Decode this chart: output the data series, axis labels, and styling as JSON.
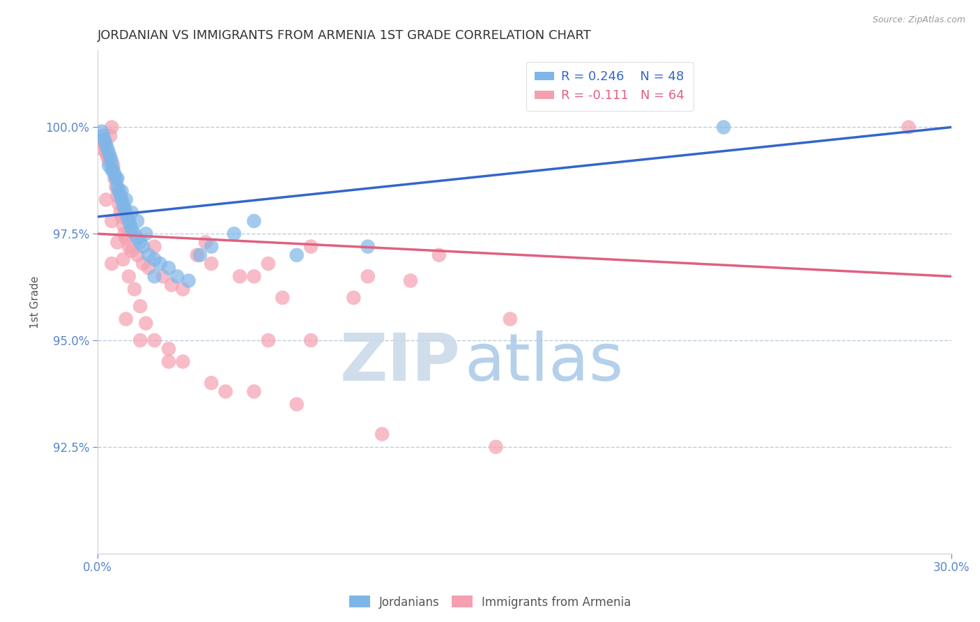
{
  "title": "JORDANIAN VS IMMIGRANTS FROM ARMENIA 1ST GRADE CORRELATION CHART",
  "source": "Source: ZipAtlas.com",
  "ylabel": "1st Grade",
  "yticks": [
    92.5,
    95.0,
    97.5,
    100.0
  ],
  "xlim": [
    0.0,
    30.0
  ],
  "ylim": [
    90.0,
    101.8
  ],
  "blue_label": "Jordanians",
  "pink_label": "Immigrants from Armenia",
  "blue_R": 0.246,
  "blue_N": 48,
  "pink_R": -0.111,
  "pink_N": 64,
  "blue_color": "#7EB6E8",
  "pink_color": "#F4A0B0",
  "blue_line_color": "#3366CC",
  "pink_line_color": "#E06080",
  "title_fontsize": 13,
  "axis_label_color": "#5588CC",
  "grid_color": "#BBCCDD",
  "blue_scatter_x": [
    0.15,
    0.2,
    0.25,
    0.3,
    0.35,
    0.4,
    0.45,
    0.5,
    0.55,
    0.6,
    0.65,
    0.7,
    0.75,
    0.8,
    0.85,
    0.9,
    0.95,
    1.0,
    1.05,
    1.1,
    1.15,
    1.2,
    1.3,
    1.4,
    1.5,
    1.6,
    1.8,
    2.0,
    2.2,
    2.5,
    2.8,
    3.2,
    3.6,
    4.0,
    4.8,
    5.5,
    7.0,
    9.5,
    22.0,
    0.4,
    0.5,
    0.7,
    0.85,
    1.0,
    1.2,
    1.4,
    1.7,
    2.0
  ],
  "blue_scatter_y": [
    99.9,
    99.8,
    99.7,
    99.6,
    99.5,
    99.4,
    99.3,
    99.2,
    99.0,
    98.9,
    98.8,
    98.6,
    98.5,
    98.4,
    98.3,
    98.2,
    98.1,
    98.0,
    97.9,
    97.8,
    97.7,
    97.6,
    97.5,
    97.4,
    97.3,
    97.2,
    97.0,
    96.9,
    96.8,
    96.7,
    96.5,
    96.4,
    97.0,
    97.2,
    97.5,
    97.8,
    97.0,
    97.2,
    100.0,
    99.1,
    99.0,
    98.8,
    98.5,
    98.3,
    98.0,
    97.8,
    97.5,
    96.5
  ],
  "pink_scatter_x": [
    0.15,
    0.2,
    0.25,
    0.3,
    0.35,
    0.4,
    0.45,
    0.5,
    0.55,
    0.6,
    0.65,
    0.7,
    0.75,
    0.8,
    0.85,
    0.9,
    0.95,
    1.0,
    1.1,
    1.2,
    1.4,
    1.6,
    1.8,
    2.0,
    2.3,
    2.6,
    3.0,
    3.5,
    4.0,
    5.0,
    6.0,
    7.5,
    9.0,
    11.0,
    0.3,
    0.5,
    0.7,
    0.9,
    1.1,
    1.3,
    1.5,
    1.7,
    2.0,
    2.5,
    3.0,
    4.0,
    5.5,
    7.0,
    10.0,
    14.0,
    3.8,
    5.5,
    7.5,
    6.5,
    12.0,
    14.5,
    0.5,
    1.0,
    1.5,
    2.5,
    4.5,
    6.0,
    9.5,
    28.5
  ],
  "pink_scatter_y": [
    99.5,
    99.7,
    99.6,
    99.4,
    99.3,
    99.2,
    99.8,
    100.0,
    99.1,
    98.8,
    98.6,
    98.4,
    98.2,
    98.0,
    97.9,
    97.7,
    97.5,
    97.4,
    97.2,
    97.1,
    97.0,
    96.8,
    96.7,
    97.2,
    96.5,
    96.3,
    96.2,
    97.0,
    96.8,
    96.5,
    96.8,
    97.2,
    96.0,
    96.4,
    98.3,
    97.8,
    97.3,
    96.9,
    96.5,
    96.2,
    95.8,
    95.4,
    95.0,
    94.8,
    94.5,
    94.0,
    93.8,
    93.5,
    92.8,
    92.5,
    97.3,
    96.5,
    95.0,
    96.0,
    97.0,
    95.5,
    96.8,
    95.5,
    95.0,
    94.5,
    93.8,
    95.0,
    96.5,
    100.0
  ],
  "blue_trend_x0": 0,
  "blue_trend_y0": 97.9,
  "blue_trend_x1": 30,
  "blue_trend_y1": 100.0,
  "pink_trend_x0": 0,
  "pink_trend_y0": 97.5,
  "pink_trend_x1": 30,
  "pink_trend_y1": 96.5
}
